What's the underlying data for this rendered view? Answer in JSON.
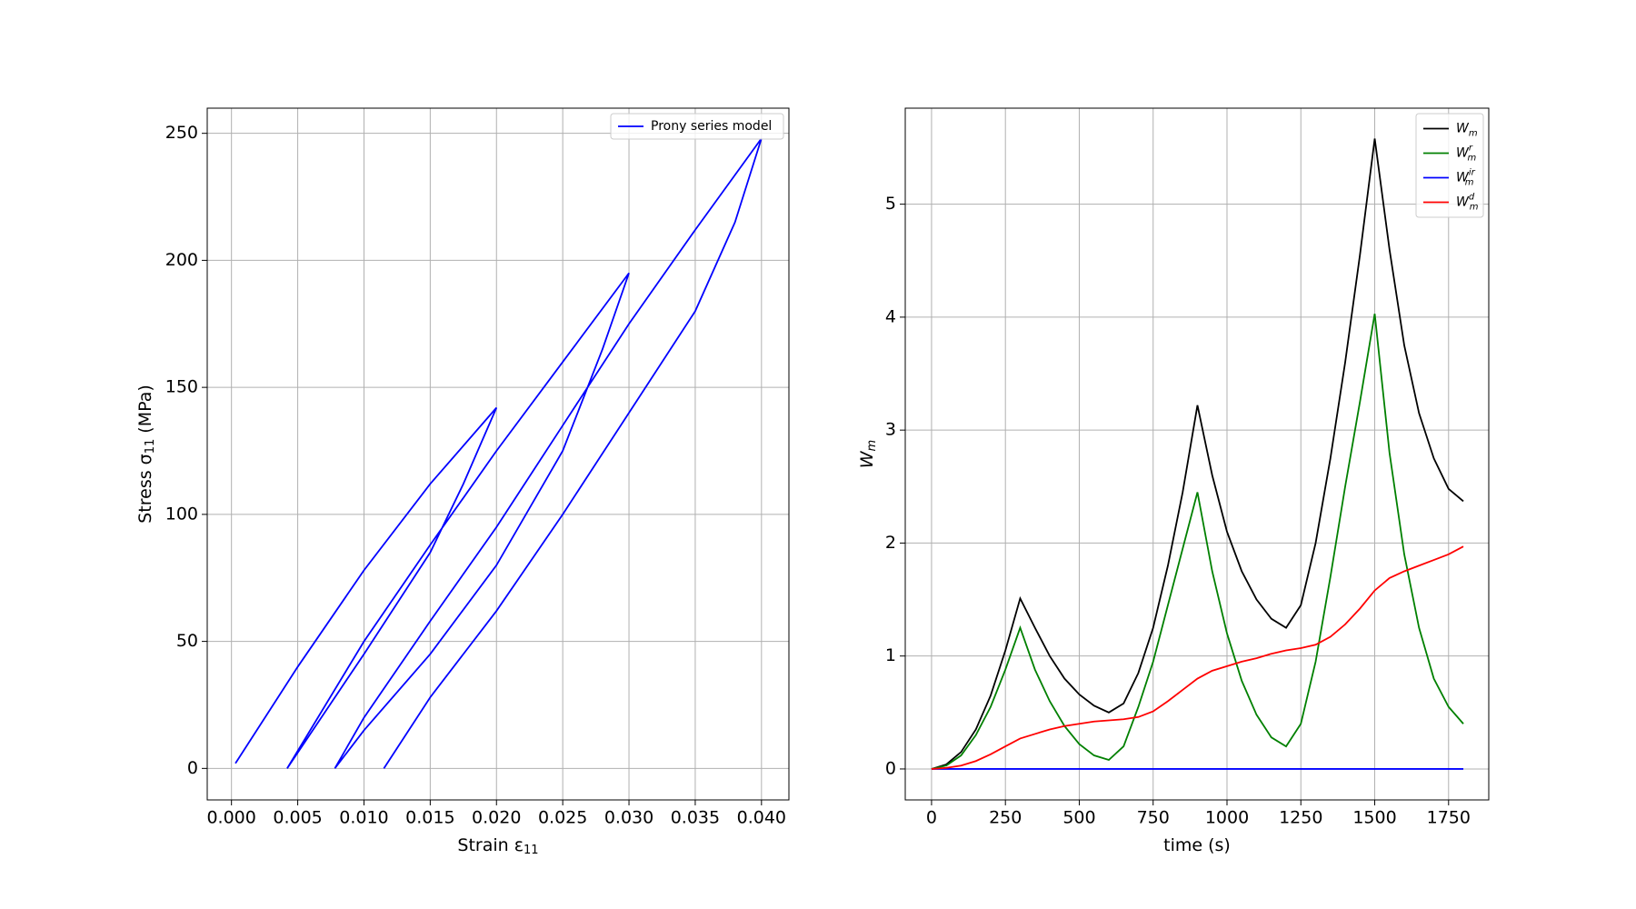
{
  "chart_data": [
    {
      "type": "line",
      "xlabel": "Strain ε",
      "xlabel_sub": "11",
      "ylabel": "Stress σ",
      "ylabel_sub": "11",
      "ylabel_end": " (MPa)",
      "x": [
        0.0003,
        0.005,
        0.01,
        0.015,
        0.02,
        0.0175,
        0.015,
        0.01,
        0.0042,
        0.01,
        0.015,
        0.02,
        0.025,
        0.03,
        0.028,
        0.025,
        0.02,
        0.015,
        0.01,
        0.0078,
        0.01,
        0.015,
        0.02,
        0.025,
        0.03,
        0.035,
        0.04,
        0.038,
        0.035,
        0.03,
        0.025,
        0.02,
        0.015,
        0.0115
      ],
      "series": [
        {
          "name": "Prony series model",
          "color": "#0000ff",
          "values": [
            2,
            40,
            78,
            112,
            142,
            112,
            85,
            45,
            0,
            50,
            88,
            125,
            160,
            195,
            165,
            125,
            80,
            45,
            15,
            0,
            20,
            58,
            95,
            135,
            175,
            212,
            248,
            215,
            180,
            140,
            100,
            62,
            28,
            0
          ]
        }
      ],
      "xlim": [
        -0.00183,
        0.04207
      ],
      "xticks": [
        {
          "value": 0,
          "label": "0.000"
        },
        {
          "value": 0.005,
          "label": "0.005"
        },
        {
          "value": 0.01,
          "label": "0.010"
        },
        {
          "value": 0.015,
          "label": "0.015"
        },
        {
          "value": 0.02,
          "label": "0.020"
        },
        {
          "value": 0.025,
          "label": "0.025"
        },
        {
          "value": 0.03,
          "label": "0.030"
        },
        {
          "value": 0.035,
          "label": "0.035"
        },
        {
          "value": 0.04,
          "label": "0.040"
        }
      ],
      "ylim": [
        -12.4,
        259.9
      ],
      "yticks": [
        0,
        50,
        100,
        150,
        200,
        250
      ],
      "grid": true,
      "legend": "upper-right"
    },
    {
      "type": "line",
      "xlabel": "time (s)",
      "ylabel": "W",
      "ylabel_sub": "m",
      "x": [
        0,
        50,
        100,
        150,
        200,
        250,
        300,
        350,
        400,
        450,
        500,
        550,
        600,
        650,
        700,
        750,
        800,
        850,
        900,
        950,
        1000,
        1050,
        1100,
        1150,
        1200,
        1250,
        1300,
        1350,
        1400,
        1450,
        1500,
        1550,
        1600,
        1650,
        1700,
        1750,
        1800
      ],
      "series": [
        {
          "name": "W",
          "name_sub": "m",
          "color": "#000000",
          "values": [
            0,
            0.04,
            0.15,
            0.35,
            0.65,
            1.05,
            1.51,
            1.25,
            1.0,
            0.8,
            0.66,
            0.56,
            0.5,
            0.58,
            0.85,
            1.25,
            1.8,
            2.45,
            3.22,
            2.6,
            2.1,
            1.75,
            1.5,
            1.33,
            1.25,
            1.45,
            2.0,
            2.75,
            3.6,
            4.55,
            5.58,
            4.6,
            3.75,
            3.15,
            2.75,
            2.48,
            2.37
          ]
        },
        {
          "name": "W",
          "name_sub": "m",
          "name_sup": "r",
          "color": "#008000",
          "values": [
            0,
            0.03,
            0.12,
            0.3,
            0.55,
            0.88,
            1.25,
            0.88,
            0.6,
            0.38,
            0.22,
            0.12,
            0.08,
            0.2,
            0.55,
            0.95,
            1.45,
            1.95,
            2.45,
            1.75,
            1.2,
            0.78,
            0.48,
            0.28,
            0.2,
            0.4,
            0.95,
            1.7,
            2.5,
            3.25,
            4.03,
            2.8,
            1.9,
            1.25,
            0.8,
            0.55,
            0.4
          ]
        },
        {
          "name": "W",
          "name_sub": "m",
          "name_sup": "ir",
          "color": "#0000ff",
          "values": [
            0,
            0,
            0,
            0,
            0,
            0,
            0,
            0,
            0,
            0,
            0,
            0,
            0,
            0,
            0,
            0,
            0,
            0,
            0,
            0,
            0,
            0,
            0,
            0,
            0,
            0,
            0,
            0,
            0,
            0,
            0,
            0,
            0,
            0,
            0,
            0,
            0
          ]
        },
        {
          "name": "W",
          "name_sub": "m",
          "name_sup": "d",
          "color": "#ff0000",
          "values": [
            0,
            0.01,
            0.03,
            0.07,
            0.13,
            0.2,
            0.27,
            0.31,
            0.35,
            0.38,
            0.4,
            0.42,
            0.43,
            0.44,
            0.46,
            0.51,
            0.6,
            0.7,
            0.8,
            0.87,
            0.91,
            0.95,
            0.98,
            1.02,
            1.05,
            1.07,
            1.1,
            1.17,
            1.28,
            1.42,
            1.58,
            1.69,
            1.75,
            1.8,
            1.85,
            1.9,
            1.97
          ]
        }
      ],
      "xlim": [
        -89,
        1886
      ],
      "xticks": [
        0,
        250,
        500,
        750,
        1000,
        1250,
        1500,
        1750
      ],
      "ylim": [
        -0.274,
        5.85
      ],
      "yticks": [
        0,
        1,
        2,
        3,
        4,
        5
      ],
      "grid": true,
      "legend": "upper-right"
    }
  ]
}
